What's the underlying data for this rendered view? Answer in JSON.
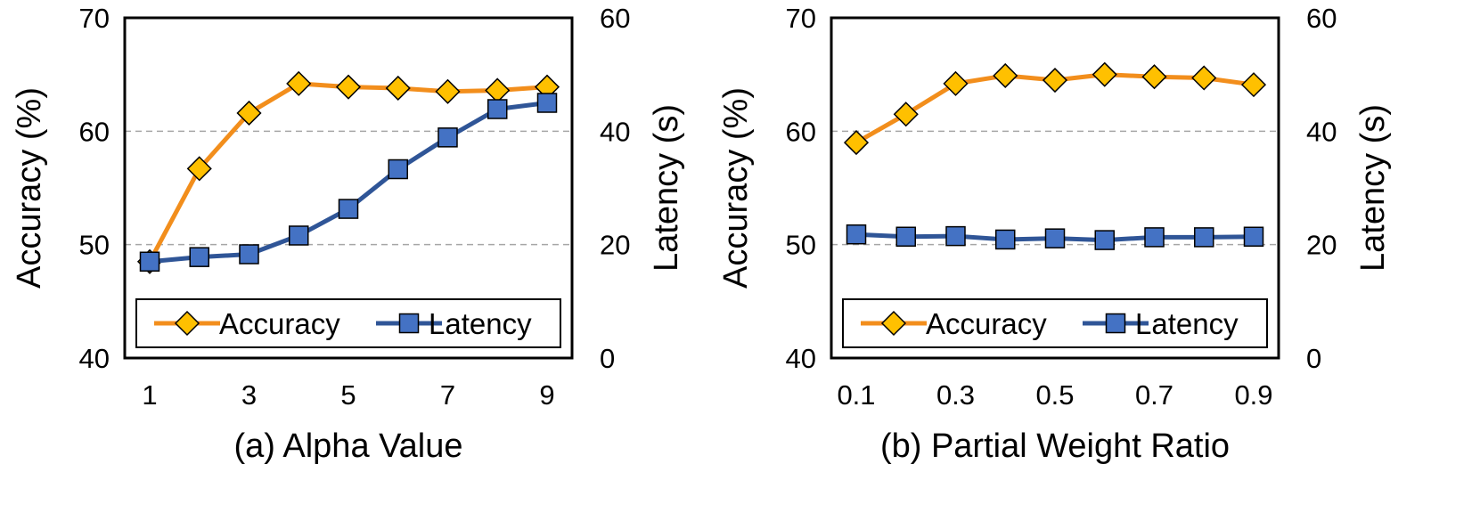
{
  "chart_data": [
    {
      "type": "line",
      "title": "(a) Alpha Value",
      "xlabel": "(a) Alpha Value",
      "ylabel": "Accuracy (%)",
      "y2label": "Latency (s)",
      "x": [
        1,
        2,
        3,
        4,
        5,
        6,
        7,
        8,
        9
      ],
      "x_tick_labels": [
        "1",
        "3",
        "5",
        "7",
        "9"
      ],
      "ylim": [
        40,
        70
      ],
      "y_ticks": [
        "40",
        "50",
        "60",
        "70"
      ],
      "y2lim": [
        0,
        60
      ],
      "y2_ticks": [
        "0",
        "20",
        "40",
        "60"
      ],
      "grid": "horizontal dashed at 50 and 60",
      "legend_position": "bottom",
      "series": [
        {
          "name": "Accuracy",
          "axis": "left",
          "color": "#F28E1C",
          "marker": "diamond",
          "marker_color": "#FFC000",
          "values": [
            48.5,
            56.7,
            61.6,
            64.2,
            63.9,
            63.8,
            63.5,
            63.6,
            63.9
          ]
        },
        {
          "name": "Latency",
          "axis": "right",
          "color": "#2F5597",
          "marker": "square",
          "marker_color": "#4472C4",
          "values": [
            17.0,
            17.8,
            18.3,
            21.6,
            26.3,
            33.3,
            38.9,
            43.9,
            45.0
          ]
        }
      ]
    },
    {
      "type": "line",
      "title": "(b) Partial Weight Ratio",
      "xlabel": "(b) Partial Weight Ratio",
      "ylabel": "Accuracy (%)",
      "y2label": "Latency (s)",
      "x": [
        0.1,
        0.2,
        0.3,
        0.4,
        0.5,
        0.6,
        0.7,
        0.8,
        0.9
      ],
      "x_tick_labels": [
        "0.1",
        "0.3",
        "0.5",
        "0.7",
        "0.9"
      ],
      "ylim": [
        40,
        70
      ],
      "y_ticks": [
        "40",
        "50",
        "60",
        "70"
      ],
      "y2lim": [
        0,
        60
      ],
      "y2_ticks": [
        "0",
        "20",
        "40",
        "60"
      ],
      "grid": "horizontal dashed at 50 and 60",
      "legend_position": "bottom",
      "series": [
        {
          "name": "Accuracy",
          "axis": "left",
          "color": "#F28E1C",
          "marker": "diamond",
          "marker_color": "#FFC000",
          "values": [
            59.0,
            61.5,
            64.2,
            64.9,
            64.5,
            65.0,
            64.8,
            64.7,
            64.1
          ]
        },
        {
          "name": "Latency",
          "axis": "right",
          "color": "#2F5597",
          "marker": "square",
          "marker_color": "#4472C4",
          "values": [
            21.8,
            21.4,
            21.5,
            20.9,
            21.1,
            20.8,
            21.3,
            21.3,
            21.4
          ]
        }
      ]
    }
  ]
}
